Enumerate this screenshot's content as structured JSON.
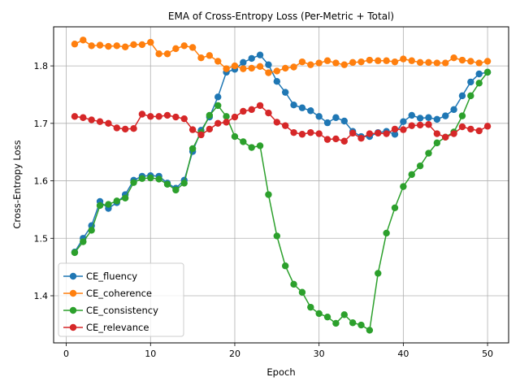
{
  "chart_data": {
    "type": "line",
    "title": "EMA of Cross-Entropy Loss (Per-Metric + Total)",
    "xlabel": "Epoch",
    "ylabel": "Cross-Entropy Loss",
    "xlim": [
      -1.5,
      52.5
    ],
    "ylim": [
      1.318,
      1.868
    ],
    "xticks": [
      0,
      10,
      20,
      30,
      40,
      50
    ],
    "yticks": [
      1.4,
      1.5,
      1.6,
      1.7,
      1.8
    ],
    "ytick_labels": [
      "1.4",
      "1.5",
      "1.6",
      "1.7",
      "1.8"
    ],
    "grid": true,
    "legend_position": "lower-left",
    "x": [
      1,
      2,
      3,
      4,
      5,
      6,
      7,
      8,
      9,
      10,
      11,
      12,
      13,
      14,
      15,
      16,
      17,
      18,
      19,
      20,
      21,
      22,
      23,
      24,
      25,
      26,
      27,
      28,
      29,
      30,
      31,
      32,
      33,
      34,
      35,
      36,
      37,
      38,
      39,
      40,
      41,
      42,
      43,
      44,
      45,
      46,
      47,
      48,
      49,
      50
    ],
    "series": [
      {
        "name": "CE_fluency",
        "color": "#1f77b4",
        "values": [
          1.476,
          1.5,
          1.522,
          1.564,
          1.552,
          1.562,
          1.576,
          1.601,
          1.608,
          1.609,
          1.608,
          1.596,
          1.587,
          1.601,
          1.651,
          1.688,
          1.711,
          1.746,
          1.789,
          1.794,
          1.806,
          1.813,
          1.819,
          1.802,
          1.773,
          1.754,
          1.732,
          1.727,
          1.722,
          1.712,
          1.701,
          1.71,
          1.704,
          1.686,
          1.677,
          1.677,
          1.684,
          1.686,
          1.681,
          1.703,
          1.714,
          1.709,
          1.71,
          1.707,
          1.713,
          1.724,
          1.748,
          1.772,
          1.786,
          1.789
        ]
      },
      {
        "name": "CE_coherence",
        "color": "#ff7f0e",
        "values": [
          1.838,
          1.845,
          1.835,
          1.836,
          1.834,
          1.835,
          1.833,
          1.837,
          1.837,
          1.841,
          1.821,
          1.821,
          1.83,
          1.835,
          1.832,
          1.814,
          1.818,
          1.808,
          1.795,
          1.8,
          1.795,
          1.796,
          1.799,
          1.788,
          1.791,
          1.796,
          1.798,
          1.807,
          1.802,
          1.805,
          1.809,
          1.805,
          1.802,
          1.806,
          1.807,
          1.81,
          1.809,
          1.809,
          1.807,
          1.812,
          1.809,
          1.806,
          1.806,
          1.805,
          1.805,
          1.814,
          1.81,
          1.808,
          1.805,
          1.808
        ]
      },
      {
        "name": "CE_consistency",
        "color": "#2ca02c",
        "values": [
          1.475,
          1.494,
          1.514,
          1.557,
          1.559,
          1.565,
          1.57,
          1.597,
          1.604,
          1.605,
          1.603,
          1.594,
          1.584,
          1.596,
          1.656,
          1.684,
          1.714,
          1.731,
          1.712,
          1.677,
          1.668,
          1.658,
          1.661,
          1.576,
          1.504,
          1.452,
          1.42,
          1.406,
          1.38,
          1.369,
          1.363,
          1.352,
          1.367,
          1.353,
          1.349,
          1.34,
          1.439,
          1.509,
          1.553,
          1.59,
          1.611,
          1.626,
          1.648,
          1.666,
          1.676,
          1.685,
          1.713,
          1.748,
          1.77,
          1.789
        ]
      },
      {
        "name": "CE_relevance",
        "color": "#d62728",
        "values": [
          1.712,
          1.71,
          1.706,
          1.703,
          1.7,
          1.692,
          1.69,
          1.691,
          1.716,
          1.712,
          1.712,
          1.714,
          1.711,
          1.708,
          1.689,
          1.68,
          1.69,
          1.7,
          1.702,
          1.711,
          1.721,
          1.724,
          1.731,
          1.718,
          1.702,
          1.696,
          1.684,
          1.681,
          1.684,
          1.682,
          1.672,
          1.673,
          1.669,
          1.683,
          1.674,
          1.682,
          1.683,
          1.682,
          1.69,
          1.689,
          1.696,
          1.697,
          1.698,
          1.682,
          1.676,
          1.682,
          1.694,
          1.69,
          1.687,
          1.695
        ]
      }
    ]
  }
}
